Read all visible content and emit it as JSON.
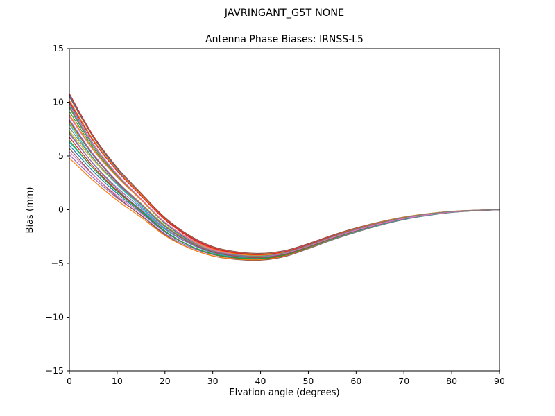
{
  "page": {
    "background": "#ffffff"
  },
  "chart_data": {
    "type": "line",
    "title": "JAVRINGANT_G5T  NONE",
    "subtitle": "Antenna Phase Biases: IRNSS-L5",
    "xlabel": "Elvation angle (degrees)",
    "ylabel": "Bias (mm)",
    "xlim": [
      0,
      90
    ],
    "ylim": [
      -15,
      15
    ],
    "xticks": [
      0,
      10,
      20,
      30,
      40,
      50,
      60,
      70,
      80,
      90
    ],
    "xtick_labels": [
      "0",
      "10",
      "20",
      "30",
      "40",
      "50",
      "60",
      "70",
      "80",
      "90"
    ],
    "yticks": [
      -15,
      -10,
      -5,
      0,
      5,
      10,
      15
    ],
    "ytick_labels": [
      "−15",
      "−10",
      "−5",
      "0",
      "5",
      "10",
      "15"
    ],
    "grid": false,
    "legend": "none",
    "frame": true,
    "x": [
      0,
      5,
      10,
      15,
      20,
      25,
      30,
      35,
      40,
      45,
      50,
      55,
      60,
      65,
      70,
      75,
      80,
      85,
      90
    ],
    "base": [
      7.8,
      4.8,
      2.4,
      0.4,
      -1.6,
      -3.0,
      -3.9,
      -4.3,
      -4.4,
      -4.1,
      -3.4,
      -2.6,
      -1.9,
      -1.3,
      -0.8,
      -0.45,
      -0.2,
      -0.07,
      0.0
    ],
    "spread": [
      3.0,
      2.2,
      1.7,
      1.3,
      1.0,
      0.75,
      0.55,
      0.45,
      0.4,
      0.35,
      0.3,
      0.28,
      0.25,
      0.2,
      0.15,
      0.1,
      0.06,
      0.03,
      0.0
    ],
    "series_rule": "value[i] = base[i] + spread[i] * (o1*(1-t) + o2*t), where t = i/(len-1); ensemble of antenna phase bias curves from ~5..11 mm at 0°, dipping to ~−4.5 mm near 35–40°, converging to 0 mm at 90°",
    "series": [
      {
        "name": "line-01",
        "color": "#1f77b4",
        "o1": 0.95,
        "o2": -0.2
      },
      {
        "name": "line-02",
        "color": "#ff7f0e",
        "o1": 0.8,
        "o2": 0.5
      },
      {
        "name": "line-03",
        "color": "#2ca02c",
        "o1": 0.6,
        "o2": -0.6
      },
      {
        "name": "line-04",
        "color": "#d62728",
        "o1": 1.0,
        "o2": 0.1
      },
      {
        "name": "line-05",
        "color": "#9467bd",
        "o1": -0.9,
        "o2": 0.3
      },
      {
        "name": "line-06",
        "color": "#8c564b",
        "o1": -0.7,
        "o2": -0.8
      },
      {
        "name": "line-07",
        "color": "#e377c2",
        "o1": 0.3,
        "o2": 0.9
      },
      {
        "name": "line-08",
        "color": "#7f7f7f",
        "o1": -0.2,
        "o2": -1.0
      },
      {
        "name": "line-09",
        "color": "#bcbd22",
        "o1": 0.1,
        "o2": 0.4
      },
      {
        "name": "line-10",
        "color": "#17becf",
        "o1": -0.5,
        "o2": 0.7
      },
      {
        "name": "line-11",
        "color": "#1f77b4",
        "o1": 0.7,
        "o2": -0.9
      },
      {
        "name": "line-12",
        "color": "#ff7f0e",
        "o1": -1.0,
        "o2": -0.1
      },
      {
        "name": "line-13",
        "color": "#2ca02c",
        "o1": 0.45,
        "o2": 0.2
      },
      {
        "name": "line-14",
        "color": "#d62728",
        "o1": -0.35,
        "o2": -0.5
      },
      {
        "name": "line-15",
        "color": "#9467bd",
        "o1": 0.2,
        "o2": -0.3
      },
      {
        "name": "line-16",
        "color": "#8c564b",
        "o1": 0.9,
        "o2": 0.8
      },
      {
        "name": "line-17",
        "color": "#e377c2",
        "o1": -0.8,
        "o2": 0.6
      },
      {
        "name": "line-18",
        "color": "#7f7f7f",
        "o1": 0.55,
        "o2": -0.05
      },
      {
        "name": "line-19",
        "color": "#bcbd22",
        "o1": -0.15,
        "o2": 0.95
      },
      {
        "name": "line-20",
        "color": "#17becf",
        "o1": 0.05,
        "o2": -0.7
      },
      {
        "name": "line-21",
        "color": "#1f77b4",
        "o1": -0.6,
        "o2": 0.05
      },
      {
        "name": "line-22",
        "color": "#ff7f0e",
        "o1": 0.35,
        "o2": 0.65
      },
      {
        "name": "line-23",
        "color": "#2ca02c",
        "o1": -0.45,
        "o2": -0.25
      },
      {
        "name": "line-24",
        "color": "#d62728",
        "o1": 0.75,
        "o2": 0.35
      },
      {
        "name": "line-25",
        "color": "#9467bd",
        "o1": -0.25,
        "o2": 0.15
      },
      {
        "name": "line-26",
        "color": "#8c564b",
        "o1": 0.15,
        "o2": -0.45
      },
      {
        "name": "line-27",
        "color": "#e377c2",
        "o1": 0.65,
        "o2": -0.35
      },
      {
        "name": "line-28",
        "color": "#7f7f7f",
        "o1": -0.05,
        "o2": 0.55
      }
    ]
  }
}
